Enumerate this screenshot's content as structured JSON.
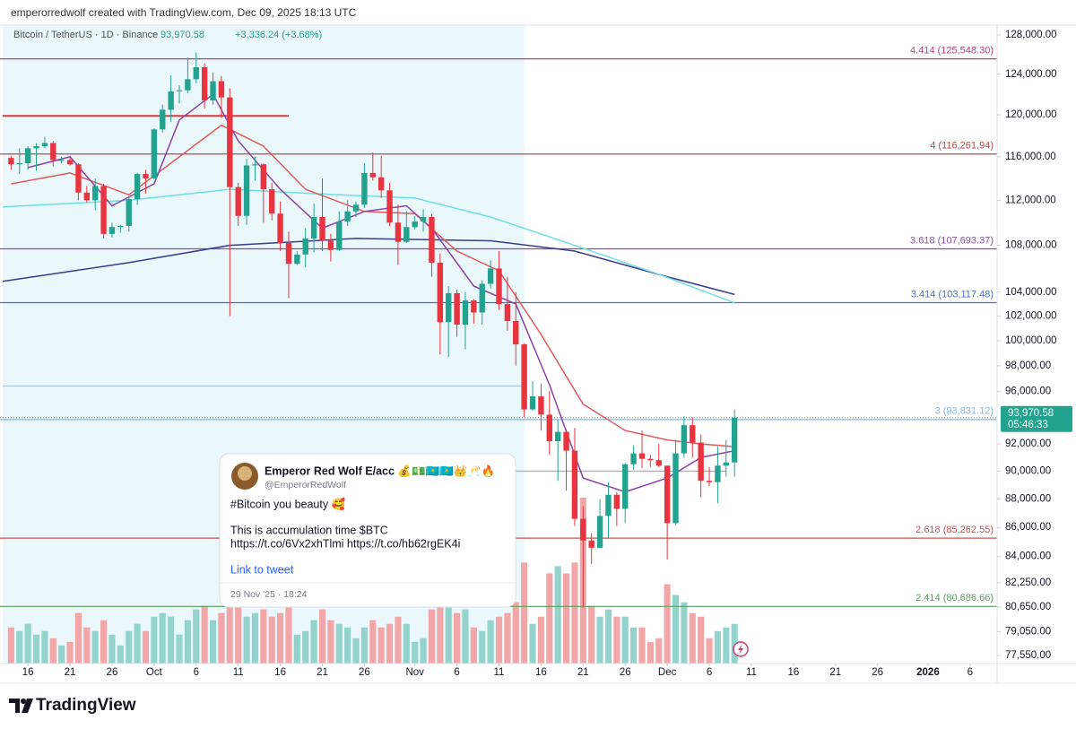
{
  "header": "emperorredwolf created with TradingView.com, Dec 09, 2025 18:13 UTC",
  "footer": "TradingView",
  "chart_data": {
    "type": "candlestick",
    "symbol": "Bitcoin / TetherUS · 1D · Binance",
    "change": "+3,336.24 (+3.68%)",
    "last_price": {
      "value": 93970.58,
      "label": "93,970.58"
    },
    "countdown": "05:46:33",
    "log_scale": true,
    "grid": false,
    "up_color": "#22a38f",
    "down_color": "#e8343f",
    "volume_up_color": "#93d3cb",
    "volume_down_color": "#f3a6a8",
    "xlim": [
      "2025-09-13",
      "2026-01-09"
    ],
    "ylim": [
      77050,
      128830
    ],
    "xticks": [
      {
        "value": "2025-09-16",
        "label": "16"
      },
      {
        "value": "2025-09-21",
        "label": "21"
      },
      {
        "value": "2025-09-26",
        "label": "26"
      },
      {
        "value": "2025-10-01",
        "label": "Oct"
      },
      {
        "value": "2025-10-06",
        "label": "6"
      },
      {
        "value": "2025-10-11",
        "label": "11"
      },
      {
        "value": "2025-10-16",
        "label": "16"
      },
      {
        "value": "2025-10-21",
        "label": "21"
      },
      {
        "value": "2025-10-26",
        "label": "26"
      },
      {
        "value": "2025-11-01",
        "label": "Nov"
      },
      {
        "value": "2025-11-06",
        "label": "6"
      },
      {
        "value": "2025-11-11",
        "label": "11"
      },
      {
        "value": "2025-11-16",
        "label": "16"
      },
      {
        "value": "2025-11-21",
        "label": "21"
      },
      {
        "value": "2025-11-26",
        "label": "26"
      },
      {
        "value": "2025-12-01",
        "label": "Dec"
      },
      {
        "value": "2025-12-06",
        "label": "6"
      },
      {
        "value": "2025-12-11",
        "label": "11"
      },
      {
        "value": "2025-12-16",
        "label": "16"
      },
      {
        "value": "2025-12-21",
        "label": "21"
      },
      {
        "value": "2025-12-26",
        "label": "26"
      },
      {
        "value": "2026-01-01",
        "label": "2026"
      },
      {
        "value": "2026-01-06",
        "label": "6"
      }
    ],
    "yticks": [
      {
        "value": 128000,
        "label": "128,000.00"
      },
      {
        "value": 124000,
        "label": "124,000.00"
      },
      {
        "value": 120000,
        "label": "120,000.00"
      },
      {
        "value": 116000,
        "label": "116,000.00"
      },
      {
        "value": 112000,
        "label": "112,000.00"
      },
      {
        "value": 108000,
        "label": "108,000.00"
      },
      {
        "value": 104000,
        "label": "104,000.00"
      },
      {
        "value": 102000,
        "label": "102,000.00"
      },
      {
        "value": 100000,
        "label": "100,000.00"
      },
      {
        "value": 98000,
        "label": "98,000.00"
      },
      {
        "value": 96000,
        "label": "96,000.00"
      },
      {
        "value": 92000,
        "label": "92,000.00"
      },
      {
        "value": 90000,
        "label": "90,000.00"
      },
      {
        "value": 88000,
        "label": "88,000.00"
      },
      {
        "value": 86000,
        "label": "86,000.00"
      },
      {
        "value": 84000,
        "label": "84,000.00"
      },
      {
        "value": 82250,
        "label": "82,250.00"
      },
      {
        "value": 80650,
        "label": "80,650.00"
      },
      {
        "value": 79050,
        "label": "79,050.00"
      },
      {
        "value": 77550,
        "label": "77,550.00"
      }
    ],
    "fib_levels": [
      {
        "value": 125548.3,
        "label": "4.414 (125,548.30)",
        "color": "#b0467f"
      },
      {
        "value": 116261.94,
        "label": "4 (116,261.94)",
        "color": "#b34d4d"
      },
      {
        "value": 107693.37,
        "label": "3.618 (107,693.37)",
        "color": "#8a4fa3"
      },
      {
        "value": 103117.48,
        "label": "3.414 (103,117.48)",
        "color": "#4a72c4"
      },
      {
        "value": 93831.12,
        "label": "3 (93,831.12)",
        "color": "#86b6dc"
      },
      {
        "value": 85262.55,
        "label": "2.618 (85,262.55)",
        "color": "#cf5151"
      },
      {
        "value": 80686.66,
        "label": "2.414 (80,686.66)",
        "color": "#5a9e5e"
      }
    ],
    "drawings": [
      {
        "value": 119900,
        "x": [
          "2025-09-13",
          "2025-10-17"
        ],
        "color": "#e0393e"
      },
      {
        "value": 96400,
        "x": [
          "2025-09-13",
          "2025-11-14"
        ],
        "color": "#a9c9e0"
      },
      {
        "value": 90000,
        "x": [
          "2025-11-12",
          "2025-12-08"
        ],
        "color": "#b0b0b0"
      }
    ],
    "shaded_range": {
      "x": [
        "2025-09-13",
        "2025-11-14"
      ],
      "color": "#eaf7fb"
    },
    "moving_averages": [
      {
        "color": "#3c3b8c",
        "x": [
          "2025-09-13",
          "2025-09-28",
          "2025-10-10",
          "2025-10-25",
          "2025-11-10",
          "2025-11-20",
          "2025-12-01",
          "2025-12-09"
        ],
        "values": [
          104900,
          106500,
          108000,
          108600,
          108400,
          107500,
          105300,
          103800
        ]
      },
      {
        "color": "#6fe0e6",
        "x": [
          "2025-09-13",
          "2025-09-28",
          "2025-10-10",
          "2025-10-20",
          "2025-11-01",
          "2025-11-10",
          "2025-11-20",
          "2025-11-30",
          "2025-12-09"
        ],
        "values": [
          111400,
          112000,
          113000,
          112600,
          112200,
          110500,
          108000,
          105500,
          103100
        ]
      },
      {
        "color": "#e05a5a",
        "x": [
          "2025-09-14",
          "2025-09-21",
          "2025-09-28",
          "2025-10-04",
          "2025-10-09",
          "2025-10-14",
          "2025-10-19",
          "2025-10-26",
          "2025-11-01",
          "2025-11-06",
          "2025-11-11",
          "2025-11-16",
          "2025-11-21",
          "2025-11-26",
          "2025-12-01",
          "2025-12-05",
          "2025-12-09"
        ],
        "values": [
          113500,
          114500,
          112500,
          116000,
          119000,
          117000,
          113000,
          111000,
          110800,
          107500,
          105800,
          100500,
          95000,
          93000,
          92300,
          92000,
          91800
        ]
      },
      {
        "color": "#8e3fa8",
        "x": [
          "2025-09-16",
          "2025-09-21",
          "2025-09-26",
          "2025-10-01",
          "2025-10-04",
          "2025-10-08",
          "2025-10-11",
          "2025-10-16",
          "2025-10-21",
          "2025-10-26",
          "2025-10-31",
          "2025-11-03",
          "2025-11-08",
          "2025-11-13",
          "2025-11-17",
          "2025-11-21",
          "2025-11-26",
          "2025-12-01",
          "2025-12-05",
          "2025-12-09"
        ],
        "values": [
          115000,
          116000,
          111500,
          113500,
          119500,
          122000,
          117500,
          113000,
          109500,
          111000,
          111500,
          109500,
          104500,
          103000,
          96500,
          89500,
          88500,
          89500,
          91000,
          91500
        ]
      }
    ],
    "candles": {
      "x": [
        "2025-09-14",
        "2025-09-15",
        "2025-09-16",
        "2025-09-17",
        "2025-09-18",
        "2025-09-19",
        "2025-09-20",
        "2025-09-21",
        "2025-09-22",
        "2025-09-23",
        "2025-09-24",
        "2025-09-25",
        "2025-09-26",
        "2025-09-27",
        "2025-09-28",
        "2025-09-29",
        "2025-09-30",
        "2025-10-01",
        "2025-10-02",
        "2025-10-03",
        "2025-10-04",
        "2025-10-05",
        "2025-10-06",
        "2025-10-07",
        "2025-10-08",
        "2025-10-09",
        "2025-10-10",
        "2025-10-11",
        "2025-10-12",
        "2025-10-13",
        "2025-10-14",
        "2025-10-15",
        "2025-10-16",
        "2025-10-17",
        "2025-10-18",
        "2025-10-19",
        "2025-10-20",
        "2025-10-21",
        "2025-10-22",
        "2025-10-23",
        "2025-10-24",
        "2025-10-25",
        "2025-10-26",
        "2025-10-27",
        "2025-10-28",
        "2025-10-29",
        "2025-10-30",
        "2025-10-31",
        "2025-11-01",
        "2025-11-02",
        "2025-11-03",
        "2025-11-04",
        "2025-11-05",
        "2025-11-06",
        "2025-11-07",
        "2025-11-08",
        "2025-11-09",
        "2025-11-10",
        "2025-11-11",
        "2025-11-12",
        "2025-11-13",
        "2025-11-14",
        "2025-11-15",
        "2025-11-16",
        "2025-11-17",
        "2025-11-18",
        "2025-11-19",
        "2025-11-20",
        "2025-11-21",
        "2025-11-22",
        "2025-11-23",
        "2025-11-24",
        "2025-11-25",
        "2025-11-26",
        "2025-11-27",
        "2025-11-28",
        "2025-11-29",
        "2025-11-30",
        "2025-12-01",
        "2025-12-02",
        "2025-12-03",
        "2025-12-04",
        "2025-12-05",
        "2025-12-06",
        "2025-12-07",
        "2025-12-08",
        "2025-12-09"
      ],
      "open": [
        115900,
        115300,
        115400,
        116800,
        117000,
        117300,
        115700,
        115700,
        115300,
        112700,
        112000,
        113300,
        109000,
        109600,
        109700,
        112100,
        114400,
        114000,
        118600,
        120500,
        122300,
        122400,
        123500,
        124700,
        121400,
        123300,
        121700,
        113200,
        110600,
        115200,
        115300,
        113000,
        110800,
        108200,
        106400,
        107200,
        108600,
        110500,
        108400,
        107600,
        110100,
        111000,
        111600,
        114500,
        114100,
        112900,
        110000,
        108300,
        109600,
        110100,
        110500,
        106500,
        101500,
        103900,
        101300,
        103300,
        102300,
        104700,
        106000,
        103000,
        101600,
        99700,
        94600,
        95600,
        94200,
        92200,
        92900,
        91500,
        86600,
        85100,
        84600,
        86800,
        88300,
        87300,
        90500,
        91300,
        90900,
        90800,
        90400,
        86300,
        91300,
        93400,
        92100,
        89300,
        89200,
        90400,
        90634.34
      ],
      "high": [
        116100,
        116800,
        117000,
        117300,
        117900,
        117500,
        116000,
        115900,
        115400,
        113300,
        114000,
        113500,
        110000,
        109800,
        112400,
        114500,
        114800,
        118700,
        121000,
        123900,
        122900,
        125700,
        126200,
        125100,
        124200,
        123800,
        122600,
        113600,
        115800,
        116000,
        115400,
        113600,
        111900,
        109200,
        107500,
        109500,
        111700,
        114000,
        109000,
        111000,
        112000,
        111900,
        115400,
        116400,
        116100,
        113600,
        111600,
        111000,
        110600,
        111200,
        110800,
        107300,
        104500,
        104200,
        104000,
        103400,
        105000,
        106700,
        107500,
        105300,
        104000,
        99800,
        96800,
        96600,
        96000,
        93800,
        93100,
        93200,
        87500,
        85600,
        88000,
        89200,
        88500,
        90600,
        91900,
        93000,
        91200,
        92000,
        90400,
        92300,
        94100,
        94000,
        92700,
        90300,
        91800,
        92300,
        94600
      ],
      "low": [
        114800,
        114400,
        114800,
        114700,
        116800,
        115100,
        115400,
        115200,
        112000,
        111800,
        111100,
        108600,
        108700,
        109100,
        109200,
        111600,
        112600,
        113900,
        118300,
        119300,
        121100,
        122100,
        123100,
        120600,
        121000,
        119700,
        102000,
        109700,
        109800,
        113800,
        110000,
        110200,
        107500,
        103500,
        106300,
        106100,
        107400,
        107500,
        106600,
        107500,
        109700,
        110500,
        111300,
        113800,
        112200,
        109700,
        106300,
        108200,
        109400,
        109200,
        105300,
        98900,
        98700,
        100300,
        99300,
        101400,
        101300,
        104300,
        102500,
        100800,
        98000,
        94000,
        94500,
        93000,
        91200,
        89300,
        88600,
        86100,
        80600,
        83500,
        84600,
        85300,
        86100,
        86300,
        90100,
        90200,
        90300,
        90300,
        83800,
        86200,
        91000,
        91000,
        88100,
        88900,
        87700,
        89600,
        89600
      ],
      "close": [
        115300,
        115400,
        116800,
        117000,
        117300,
        115700,
        115700,
        115300,
        112700,
        112000,
        113300,
        109000,
        109600,
        109700,
        112100,
        114400,
        114000,
        118600,
        120500,
        122300,
        122400,
        123500,
        124700,
        121400,
        123300,
        121700,
        113200,
        110600,
        115200,
        115300,
        113000,
        110800,
        108200,
        106400,
        107200,
        108600,
        110500,
        108400,
        107600,
        110100,
        111000,
        111600,
        114500,
        114100,
        112900,
        110000,
        108300,
        109600,
        110100,
        110500,
        106500,
        101500,
        103900,
        101300,
        103300,
        102300,
        104700,
        106000,
        103000,
        101600,
        99700,
        94600,
        95600,
        94200,
        92200,
        92900,
        91500,
        86600,
        85100,
        84600,
        86800,
        88300,
        87300,
        90500,
        91300,
        90900,
        90800,
        90400,
        86300,
        91300,
        93400,
        92100,
        89300,
        89200,
        90400,
        90634.34,
        93970.58
      ],
      "volume": [
        10,
        9,
        11,
        8,
        9,
        7,
        5,
        6,
        14,
        10,
        9,
        12,
        8,
        5,
        9,
        11,
        9,
        13,
        14,
        13,
        8,
        12,
        15,
        16,
        12,
        14,
        18,
        16,
        13,
        14,
        15,
        13,
        14,
        16,
        8,
        9,
        12,
        15,
        12,
        11,
        10,
        7,
        10,
        12,
        10,
        11,
        13,
        11,
        6,
        7,
        15,
        22,
        17,
        14,
        15,
        10,
        9,
        12,
        13,
        14,
        17,
        28,
        11,
        13,
        25,
        27,
        25,
        28,
        46,
        16,
        13,
        15,
        13,
        13,
        10,
        10,
        6,
        7,
        22,
        19,
        17,
        14,
        13,
        7,
        9,
        10,
        11
      ]
    }
  },
  "tweet": {
    "name": "Emperor Red Wolf E/acc 💰💵🇰🇿🇰🇿👑🥂🔥",
    "handle": "@EmperorRedWolf",
    "lines": [
      "#Bitcoin you beauty 🥰",
      "This is accumulation time $BTC",
      "https://t.co/6Vx2xhTlmi https://t.co/hb62rgEK4i"
    ],
    "link": "Link to tweet",
    "date": "29 Nov '25 · 18:24"
  }
}
